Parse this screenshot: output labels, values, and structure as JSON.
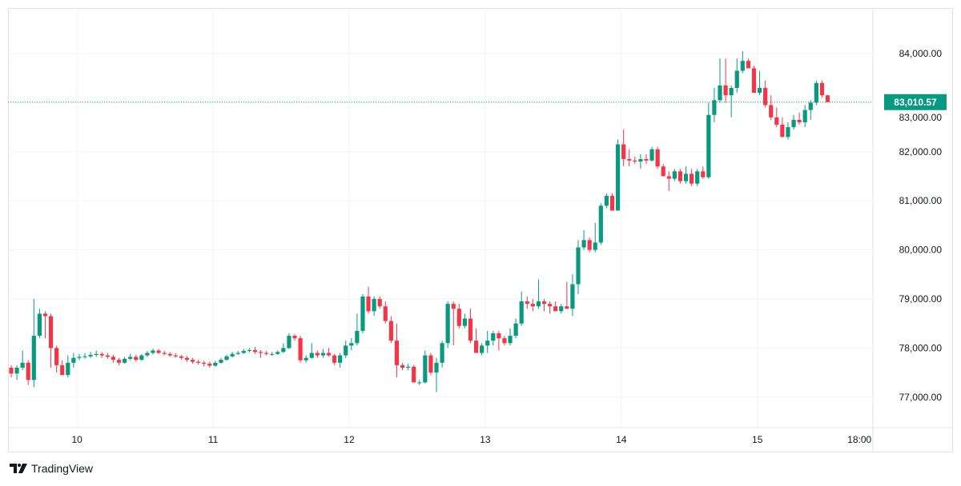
{
  "chart_data": {
    "type": "candlestick",
    "title": "",
    "xlabel": "",
    "ylabel": "",
    "ylim": [
      76500,
      84900
    ],
    "grid": true,
    "y_ticks": [
      "84,000.00",
      "83,000.00",
      "82,000.00",
      "81,000.00",
      "80,000.00",
      "79,000.00",
      "78,000.00",
      "77,000.00"
    ],
    "y_tick_values": [
      84000,
      83000,
      82000,
      81000,
      80000,
      79000,
      78000,
      77000
    ],
    "x_ticks": [
      "10",
      "11",
      "12",
      "13",
      "14",
      "15",
      "18:00"
    ],
    "last_price": 83010.57,
    "last_price_label": "83,010.57",
    "colors": {
      "up": "#089981",
      "down": "#f23645",
      "grid": "#f0f3fa",
      "last_price": "#089981"
    },
    "candles_ohlc": [
      [
        77600,
        77650,
        77400,
        77480
      ],
      [
        77480,
        77650,
        77350,
        77600
      ],
      [
        77600,
        77950,
        77550,
        77700
      ],
      [
        77700,
        77750,
        77250,
        77350
      ],
      [
        77350,
        79000,
        77200,
        78250
      ],
      [
        78250,
        78800,
        78200,
        78700
      ],
      [
        78700,
        78750,
        78200,
        78650
      ],
      [
        78650,
        78700,
        77600,
        78000
      ],
      [
        78000,
        78050,
        77500,
        77650
      ],
      [
        77650,
        77750,
        77450,
        77450
      ],
      [
        77450,
        77850,
        77400,
        77700
      ],
      [
        77700,
        77900,
        77600,
        77800
      ],
      [
        77800,
        77880,
        77750,
        77820
      ],
      [
        77820,
        77900,
        77780,
        77830
      ],
      [
        77830,
        77920,
        77800,
        77860
      ],
      [
        77860,
        77950,
        77820,
        77880
      ],
      [
        77880,
        77920,
        77800,
        77850
      ],
      [
        77850,
        77900,
        77780,
        77820
      ],
      [
        77820,
        77860,
        77700,
        77760
      ],
      [
        77760,
        77800,
        77650,
        77700
      ],
      [
        77700,
        77820,
        77680,
        77780
      ],
      [
        77780,
        77880,
        77750,
        77820
      ],
      [
        77820,
        77860,
        77720,
        77760
      ],
      [
        77760,
        77880,
        77740,
        77850
      ],
      [
        77850,
        77940,
        77820,
        77900
      ],
      [
        77900,
        77990,
        77870,
        77950
      ],
      [
        77950,
        77980,
        77880,
        77900
      ],
      [
        77900,
        77940,
        77850,
        77880
      ],
      [
        77880,
        77920,
        77820,
        77850
      ],
      [
        77850,
        77890,
        77800,
        77830
      ],
      [
        77830,
        77860,
        77760,
        77800
      ],
      [
        77800,
        77840,
        77720,
        77760
      ],
      [
        77760,
        77800,
        77680,
        77720
      ],
      [
        77720,
        77760,
        77660,
        77700
      ],
      [
        77700,
        77740,
        77620,
        77680
      ],
      [
        77680,
        77720,
        77600,
        77640
      ],
      [
        77640,
        77740,
        77620,
        77700
      ],
      [
        77700,
        77800,
        77680,
        77760
      ],
      [
        77760,
        77860,
        77740,
        77830
      ],
      [
        77830,
        77920,
        77810,
        77880
      ],
      [
        77880,
        77940,
        77860,
        77900
      ],
      [
        77900,
        77980,
        77880,
        77940
      ],
      [
        77940,
        78000,
        77910,
        77960
      ],
      [
        77960,
        78020,
        77880,
        77920
      ],
      [
        77920,
        77960,
        77800,
        77900
      ],
      [
        77900,
        77940,
        77850,
        77880
      ],
      [
        77880,
        77920,
        77840,
        77880
      ],
      [
        77880,
        77950,
        77860,
        77920
      ],
      [
        77920,
        78100,
        77900,
        78000
      ],
      [
        78000,
        78300,
        77980,
        78250
      ],
      [
        78250,
        78280,
        78150,
        78200
      ],
      [
        78200,
        78250,
        77700,
        77750
      ],
      [
        77750,
        77850,
        77700,
        77800
      ],
      [
        77800,
        78100,
        77780,
        77900
      ],
      [
        77900,
        77950,
        77800,
        77850
      ],
      [
        77850,
        77980,
        77800,
        77900
      ],
      [
        77900,
        78000,
        77830,
        77850
      ],
      [
        77850,
        77880,
        77650,
        77700
      ],
      [
        77700,
        77900,
        77600,
        77850
      ],
      [
        77850,
        78150,
        77800,
        78050
      ],
      [
        78050,
        78200,
        77950,
        78100
      ],
      [
        78100,
        78700,
        78050,
        78350
      ],
      [
        78350,
        79100,
        78300,
        79050
      ],
      [
        79050,
        79250,
        78700,
        78750
      ],
      [
        78750,
        79050,
        78650,
        79000
      ],
      [
        79000,
        79050,
        78800,
        78850
      ],
      [
        78850,
        78950,
        78500,
        78550
      ],
      [
        78550,
        78650,
        78100,
        78150
      ],
      [
        78150,
        78500,
        77400,
        77650
      ],
      [
        77650,
        77700,
        77550,
        77600
      ],
      [
        77600,
        77680,
        77550,
        77620
      ],
      [
        77620,
        77650,
        77300,
        77300
      ],
      [
        77300,
        77350,
        77250,
        77300
      ],
      [
        77300,
        77950,
        77280,
        77850
      ],
      [
        77850,
        77900,
        77450,
        77500
      ],
      [
        77500,
        77800,
        77100,
        77700
      ],
      [
        77700,
        78150,
        77600,
        78100
      ],
      [
        78100,
        78950,
        78000,
        78900
      ],
      [
        78900,
        78950,
        78050,
        78800
      ],
      [
        78800,
        78900,
        78400,
        78450
      ],
      [
        78450,
        78700,
        78400,
        78600
      ],
      [
        78600,
        78800,
        78100,
        78150
      ],
      [
        78150,
        78400,
        77900,
        77900
      ],
      [
        77900,
        78100,
        77850,
        78050
      ],
      [
        78050,
        78350,
        77900,
        78150
      ],
      [
        78150,
        78350,
        78050,
        78300
      ],
      [
        78300,
        78350,
        77950,
        78200
      ],
      [
        78200,
        78250,
        78050,
        78100
      ],
      [
        78100,
        78400,
        78050,
        78250
      ],
      [
        78250,
        78600,
        78200,
        78500
      ],
      [
        78500,
        79150,
        78450,
        78950
      ],
      [
        78950,
        79050,
        78800,
        78900
      ],
      [
        78900,
        79000,
        78750,
        78850
      ],
      [
        78850,
        79400,
        78800,
        78950
      ],
      [
        78950,
        79000,
        78750,
        78900
      ],
      [
        78900,
        78950,
        78700,
        78850
      ],
      [
        78850,
        78950,
        78750,
        78750
      ],
      [
        78750,
        78900,
        78700,
        78850
      ],
      [
        78850,
        79350,
        78800,
        78800
      ],
      [
        78800,
        79500,
        78650,
        79300
      ],
      [
        79300,
        80200,
        79100,
        80050
      ],
      [
        80050,
        80400,
        80000,
        80200
      ],
      [
        80200,
        80250,
        79950,
        80000
      ],
      [
        80000,
        80550,
        79950,
        80150
      ],
      [
        80150,
        80950,
        80100,
        80900
      ],
      [
        80900,
        81150,
        80850,
        81100
      ],
      [
        81100,
        81150,
        80800,
        80800
      ],
      [
        80800,
        82250,
        80800,
        82150
      ],
      [
        82150,
        82450,
        81700,
        81850
      ],
      [
        81850,
        82050,
        81700,
        81820
      ],
      [
        81820,
        81900,
        81750,
        81800
      ],
      [
        81800,
        81950,
        81650,
        81850
      ],
      [
        81850,
        81950,
        81750,
        81820
      ],
      [
        81820,
        82100,
        81800,
        82050
      ],
      [
        82050,
        82100,
        81650,
        81700
      ],
      [
        81700,
        81750,
        81500,
        81500
      ],
      [
        81500,
        81600,
        81200,
        81450
      ],
      [
        81450,
        81650,
        81400,
        81600
      ],
      [
        81600,
        81650,
        81350,
        81400
      ],
      [
        81400,
        81700,
        81350,
        81550
      ],
      [
        81550,
        81650,
        81300,
        81350
      ],
      [
        81350,
        81650,
        81300,
        81600
      ],
      [
        81600,
        81700,
        81450,
        81480
      ],
      [
        81480,
        83000,
        81450,
        82750
      ],
      [
        82750,
        83300,
        82600,
        83050
      ],
      [
        83050,
        83900,
        83000,
        83350
      ],
      [
        83350,
        83900,
        83000,
        83150
      ],
      [
        83150,
        83350,
        82700,
        83300
      ],
      [
        83300,
        83900,
        83200,
        83650
      ],
      [
        83650,
        84050,
        83600,
        83850
      ],
      [
        83850,
        83900,
        83700,
        83700
      ],
      [
        83700,
        83750,
        83200,
        83200
      ],
      [
        83200,
        83650,
        83150,
        83300
      ],
      [
        83300,
        83450,
        82900,
        82950
      ],
      [
        82950,
        83150,
        82650,
        82700
      ],
      [
        82700,
        82900,
        82500,
        82550
      ],
      [
        82550,
        82700,
        82300,
        82300
      ],
      [
        82300,
        82600,
        82250,
        82500
      ],
      [
        82500,
        82750,
        82450,
        82650
      ],
      [
        82650,
        82800,
        82550,
        82600
      ],
      [
        82600,
        82950,
        82500,
        82850
      ],
      [
        82850,
        83050,
        82650,
        83000
      ],
      [
        83000,
        83450,
        82950,
        83400
      ],
      [
        83400,
        83450,
        83100,
        83150
      ],
      [
        83150,
        83150,
        83000,
        83010.57
      ]
    ]
  },
  "branding": {
    "logo_text": "TradingView"
  }
}
